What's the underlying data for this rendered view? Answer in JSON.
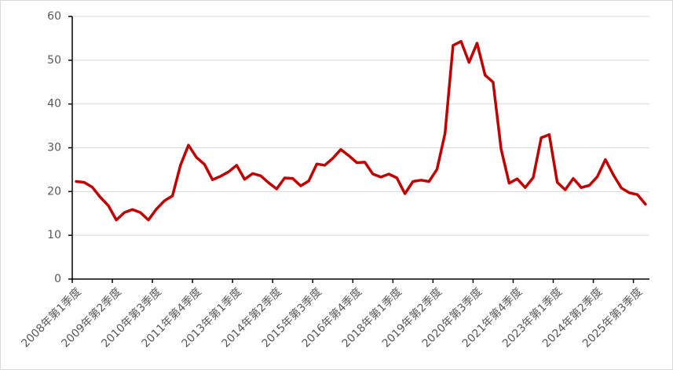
{
  "chart_data": {
    "type": "line",
    "categories": [
      "2008年第1季度",
      null,
      null,
      null,
      null,
      "2009年第2季度",
      null,
      null,
      null,
      null,
      "2010年第3季度",
      null,
      null,
      null,
      null,
      "2011年第4季度",
      null,
      null,
      null,
      null,
      "2013年第1季度",
      null,
      null,
      null,
      null,
      "2014年第2季度",
      null,
      null,
      null,
      null,
      "2015年第3季度",
      null,
      null,
      null,
      null,
      "2016年第4季度",
      null,
      null,
      null,
      null,
      "2018年第1季度",
      null,
      null,
      null,
      null,
      "2019年第2季度",
      null,
      null,
      null,
      null,
      "2020年第3季度",
      null,
      null,
      null,
      null,
      "2021年第4季度",
      null,
      null,
      null,
      null,
      "2023年第1季度",
      null,
      null,
      null,
      null,
      "2024年第2季度",
      null,
      null,
      null,
      null,
      "2025年第3季度",
      null
    ],
    "values": [
      22.3,
      22.1,
      21,
      18.7,
      16.8,
      13.5,
      15.2,
      15.9,
      15.2,
      13.5,
      16,
      17.9,
      19,
      26,
      30.6,
      27.8,
      26.2,
      22.7,
      23.5,
      24.5,
      26,
      22.8,
      24.1,
      23.6,
      22,
      20.6,
      23.1,
      23,
      21.3,
      22.4,
      26.3,
      26,
      27.6,
      29.6,
      28.2,
      26.6,
      26.7,
      24,
      23.3,
      24,
      23.1,
      19.5,
      22.3,
      22.6,
      22.3,
      25.1,
      33.3,
      53.4,
      54.3,
      49.5,
      53.9,
      46.6,
      45,
      29.7,
      21.9,
      22.9,
      20.9,
      23.2,
      32.3,
      33,
      22.1,
      20.4,
      23,
      20.9,
      21.4,
      23.4,
      27.3,
      23.8,
      20.8,
      19.7,
      19.3,
      17.1
    ],
    "color": "#c00000",
    "ylim": [
      0,
      60
    ],
    "yticks": [
      0,
      10,
      20,
      30,
      40,
      50,
      60
    ],
    "grid": true
  }
}
